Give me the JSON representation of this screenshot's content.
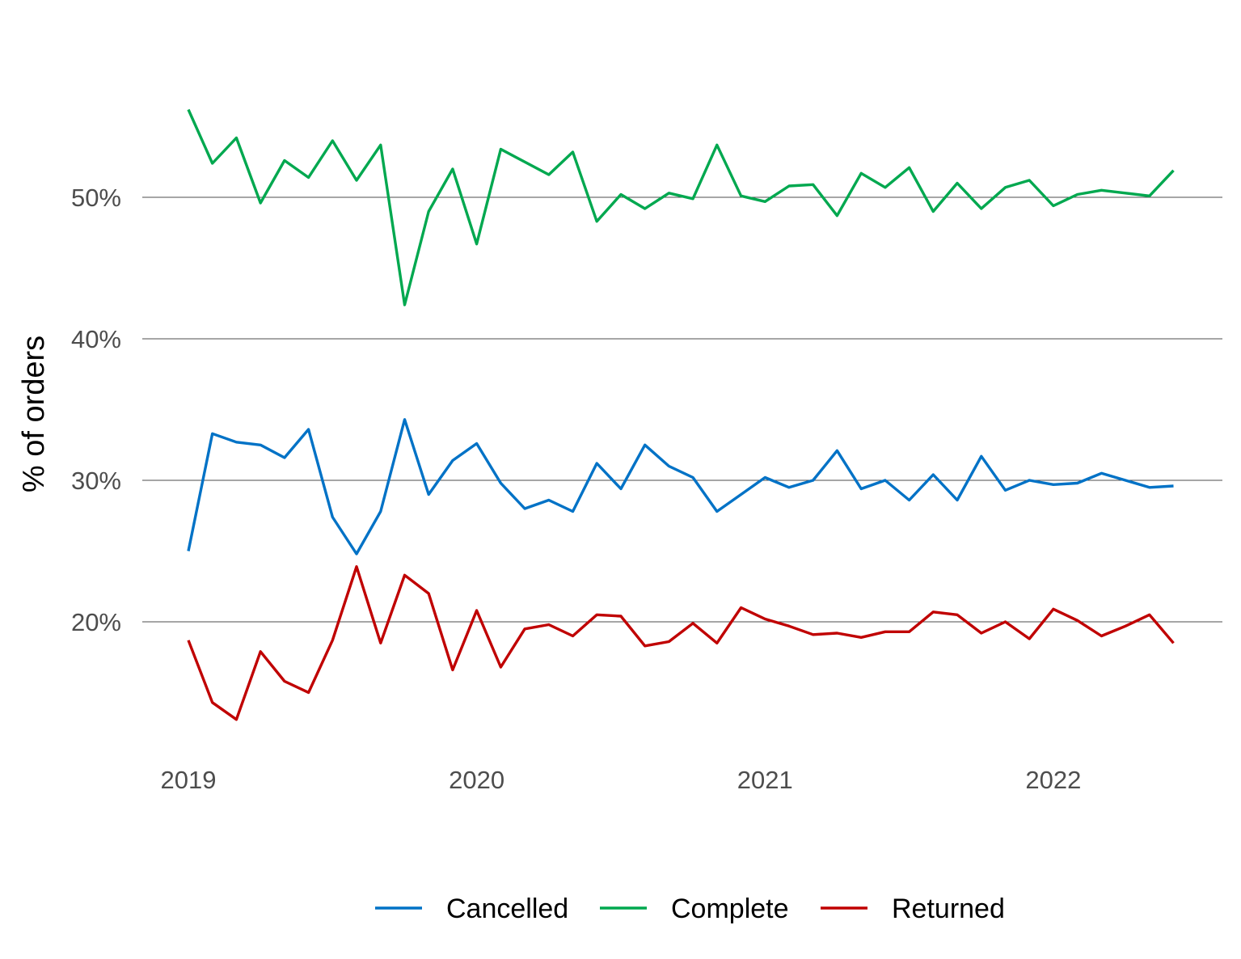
{
  "chart_data": {
    "type": "line",
    "ylabel": "% of orders",
    "xlabel": "",
    "x_tick_labels": [
      "2019",
      "2020",
      "2021",
      "2022"
    ],
    "y_tick_labels": [
      "20%",
      "30%",
      "40%",
      "50%"
    ],
    "y_ticks": [
      20,
      30,
      40,
      50
    ],
    "ylim": [
      11.5,
      58
    ],
    "x": [
      "2019-01",
      "2019-02",
      "2019-03",
      "2019-04",
      "2019-05",
      "2019-06",
      "2019-07",
      "2019-08",
      "2019-09",
      "2019-10",
      "2019-11",
      "2019-12",
      "2020-01",
      "2020-02",
      "2020-03",
      "2020-04",
      "2020-05",
      "2020-06",
      "2020-07",
      "2020-08",
      "2020-09",
      "2020-10",
      "2020-11",
      "2020-12",
      "2021-01",
      "2021-02",
      "2021-03",
      "2021-04",
      "2021-05",
      "2021-06",
      "2021-07",
      "2021-08",
      "2021-09",
      "2021-10",
      "2021-11",
      "2021-12",
      "2022-01",
      "2022-02",
      "2022-03",
      "2022-04",
      "2022-05",
      "2022-06"
    ],
    "grid": "horizontal major gridlines only",
    "legend_position": "bottom",
    "series": [
      {
        "name": "Cancelled",
        "color": "#0072c6",
        "values": [
          25.0,
          33.3,
          32.7,
          32.5,
          31.6,
          33.6,
          27.4,
          24.8,
          27.8,
          34.3,
          29.0,
          31.4,
          32.6,
          29.8,
          28.0,
          28.6,
          27.8,
          31.2,
          29.4,
          32.5,
          31.0,
          30.2,
          27.8,
          29.0,
          30.2,
          29.5,
          30.0,
          32.1,
          29.4,
          30.0,
          28.6,
          30.4,
          28.6,
          31.7,
          29.3,
          30.0,
          29.7,
          29.8,
          30.5,
          30.0,
          29.5,
          29.6
        ]
      },
      {
        "name": "Complete",
        "color": "#00a84f",
        "values": [
          56.2,
          52.4,
          54.2,
          49.6,
          52.6,
          51.4,
          54.0,
          51.2,
          53.7,
          42.4,
          49.0,
          52.0,
          46.7,
          53.4,
          52.5,
          51.6,
          53.2,
          48.3,
          50.2,
          49.2,
          50.3,
          49.9,
          53.7,
          50.1,
          49.7,
          50.8,
          50.9,
          48.7,
          51.7,
          50.7,
          52.1,
          49.0,
          51.0,
          49.2,
          50.7,
          51.2,
          49.4,
          50.2,
          50.5,
          50.3,
          50.1,
          51.9
        ]
      },
      {
        "name": "Returned",
        "color": "#c00000",
        "values": [
          18.7,
          14.3,
          13.1,
          17.9,
          15.8,
          15.0,
          18.7,
          23.9,
          18.5,
          23.3,
          22.0,
          16.6,
          20.8,
          16.8,
          19.5,
          19.8,
          19.0,
          20.5,
          20.4,
          18.3,
          18.6,
          19.9,
          18.5,
          21.0,
          20.2,
          19.7,
          19.1,
          19.2,
          18.9,
          19.3,
          19.3,
          20.7,
          20.5,
          19.2,
          20.0,
          18.8,
          20.9,
          20.1,
          19.0,
          19.7,
          20.5,
          18.5
        ]
      }
    ]
  }
}
